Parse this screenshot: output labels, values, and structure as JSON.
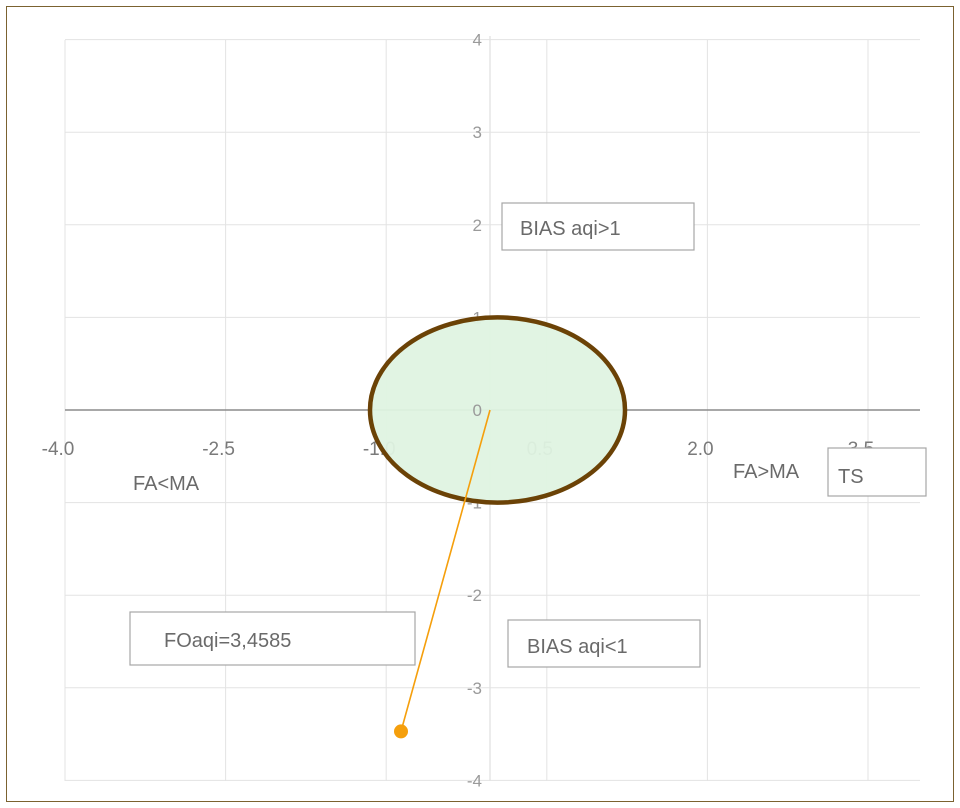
{
  "chart_data": {
    "type": "scatter",
    "x_ticks": [
      "-4.0",
      "-2.5",
      "-1.0",
      "0.5",
      "2.0",
      "3.5"
    ],
    "x_tick_values": [
      -4.0,
      -2.5,
      -1.0,
      0.5,
      2.0,
      3.5
    ],
    "y_ticks": [
      "4",
      "3",
      "2",
      "1",
      "0",
      "-1",
      "-2",
      "-3",
      "-4"
    ],
    "y_tick_values": [
      4,
      3,
      2,
      1,
      0,
      -1,
      -2,
      -3,
      -4
    ],
    "xlim": [
      -4.0,
      3.9
    ],
    "ylim": [
      -4,
      4
    ],
    "grid": true,
    "circle": {
      "center": [
        0,
        0
      ],
      "radius": 1,
      "fill": "#dff3e1",
      "stroke": "#6b4206"
    },
    "vector": {
      "from": [
        0,
        0
      ],
      "to": [
        -0.8,
        -3.46
      ],
      "color": "#f59f0c"
    },
    "annotations": {
      "bias_gt": "BIAS aqi>1",
      "bias_lt": "BIAS aqi<1",
      "fa_lt_ma": "FA<MA",
      "fa_gt_ma": "FA>MA",
      "ts": "TS",
      "fo": "FOaqi=3,4585"
    }
  },
  "colors": {
    "frame": "#7b6230",
    "grid": "#e3e3e3",
    "axis": "#8c8c8c"
  }
}
